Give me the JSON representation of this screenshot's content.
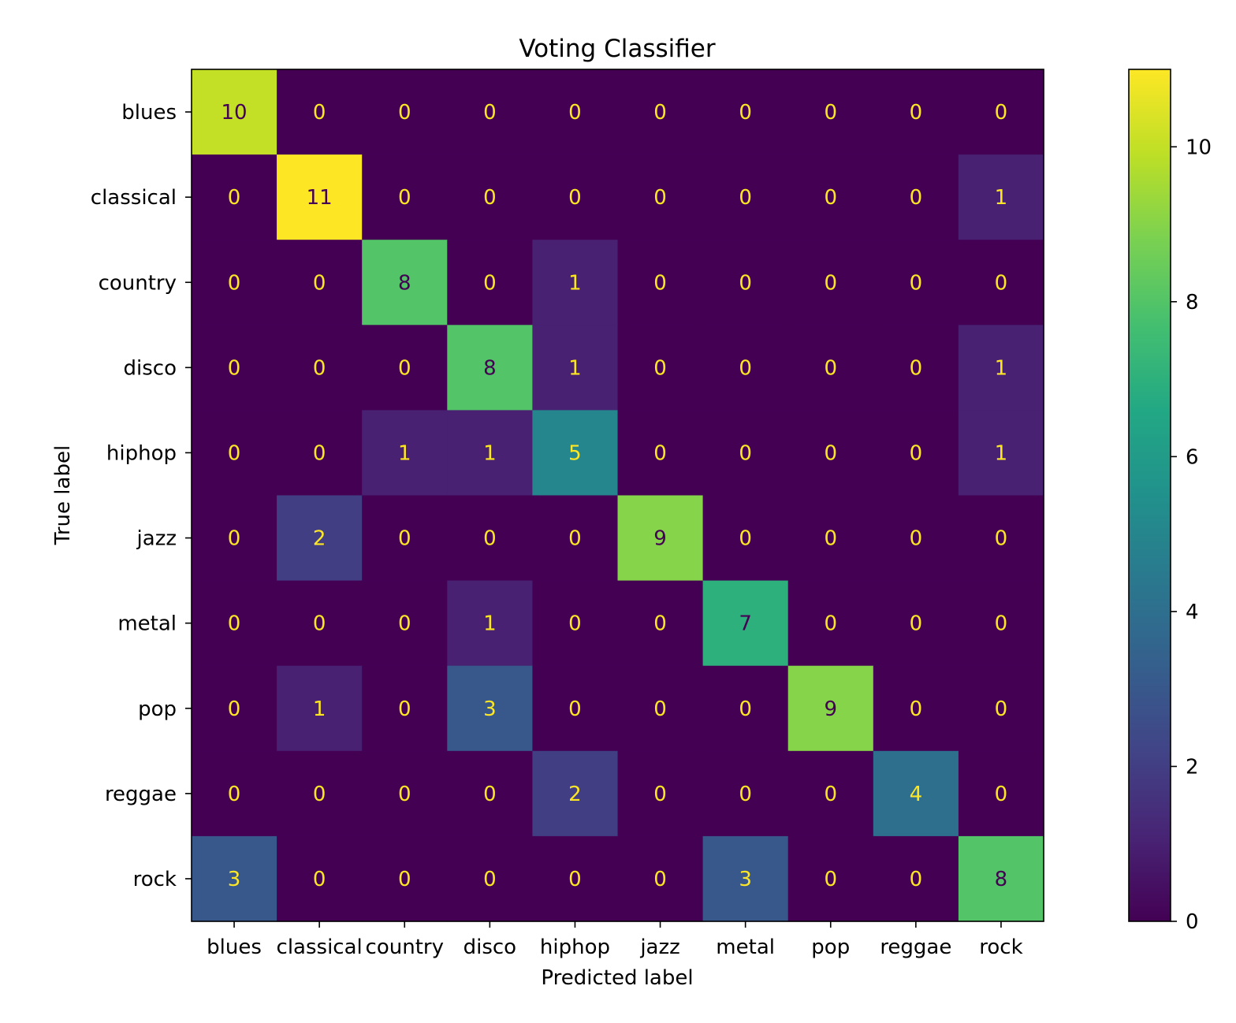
{
  "chart_data": {
    "type": "heatmap",
    "title": "Voting Classifier",
    "xlabel": "Predicted label",
    "ylabel": "True label",
    "x_categories": [
      "blues",
      "classical",
      "country",
      "disco",
      "hiphop",
      "jazz",
      "metal",
      "pop",
      "reggae",
      "rock"
    ],
    "y_categories": [
      "blues",
      "classical",
      "country",
      "disco",
      "hiphop",
      "jazz",
      "metal",
      "pop",
      "reggae",
      "rock"
    ],
    "values": [
      [
        10,
        0,
        0,
        0,
        0,
        0,
        0,
        0,
        0,
        0
      ],
      [
        0,
        11,
        0,
        0,
        0,
        0,
        0,
        0,
        0,
        1
      ],
      [
        0,
        0,
        8,
        0,
        1,
        0,
        0,
        0,
        0,
        0
      ],
      [
        0,
        0,
        0,
        8,
        1,
        0,
        0,
        0,
        0,
        1
      ],
      [
        0,
        0,
        1,
        1,
        5,
        0,
        0,
        0,
        0,
        1
      ],
      [
        0,
        2,
        0,
        0,
        0,
        9,
        0,
        0,
        0,
        0
      ],
      [
        0,
        0,
        0,
        1,
        0,
        0,
        7,
        0,
        0,
        0
      ],
      [
        0,
        1,
        0,
        3,
        0,
        0,
        0,
        9,
        0,
        0
      ],
      [
        0,
        0,
        0,
        0,
        2,
        0,
        0,
        0,
        4,
        0
      ],
      [
        3,
        0,
        0,
        0,
        0,
        0,
        3,
        0,
        0,
        8
      ]
    ],
    "colormap": "viridis",
    "vmin": 0,
    "vmax": 11,
    "colorbar_ticks": [
      0,
      2,
      4,
      6,
      8,
      10
    ],
    "text_color_light": "#fde725",
    "text_color_dark": "#440154",
    "grid": false
  }
}
